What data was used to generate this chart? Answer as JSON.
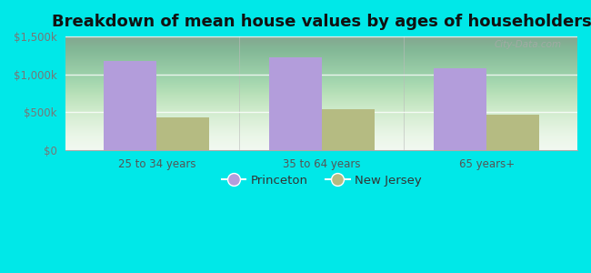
{
  "title": "Breakdown of mean house values by ages of householders",
  "categories": [
    "25 to 34 years",
    "35 to 64 years",
    "65 years+"
  ],
  "princeton_values": [
    1175000,
    1225000,
    1075000
  ],
  "nj_values": [
    425000,
    535000,
    465000
  ],
  "princeton_color": "#b39ddb",
  "nj_color": "#b5bb82",
  "ylim": [
    0,
    1500000
  ],
  "yticks": [
    0,
    500000,
    1000000,
    1500000
  ],
  "ytick_labels": [
    "$0",
    "$500k",
    "$1,000k",
    "$1,500k"
  ],
  "bg_color": "#00e8e8",
  "bar_width": 0.32,
  "legend_labels": [
    "Princeton",
    "New Jersey"
  ],
  "title_fontsize": 13,
  "watermark": "City-Data.com"
}
